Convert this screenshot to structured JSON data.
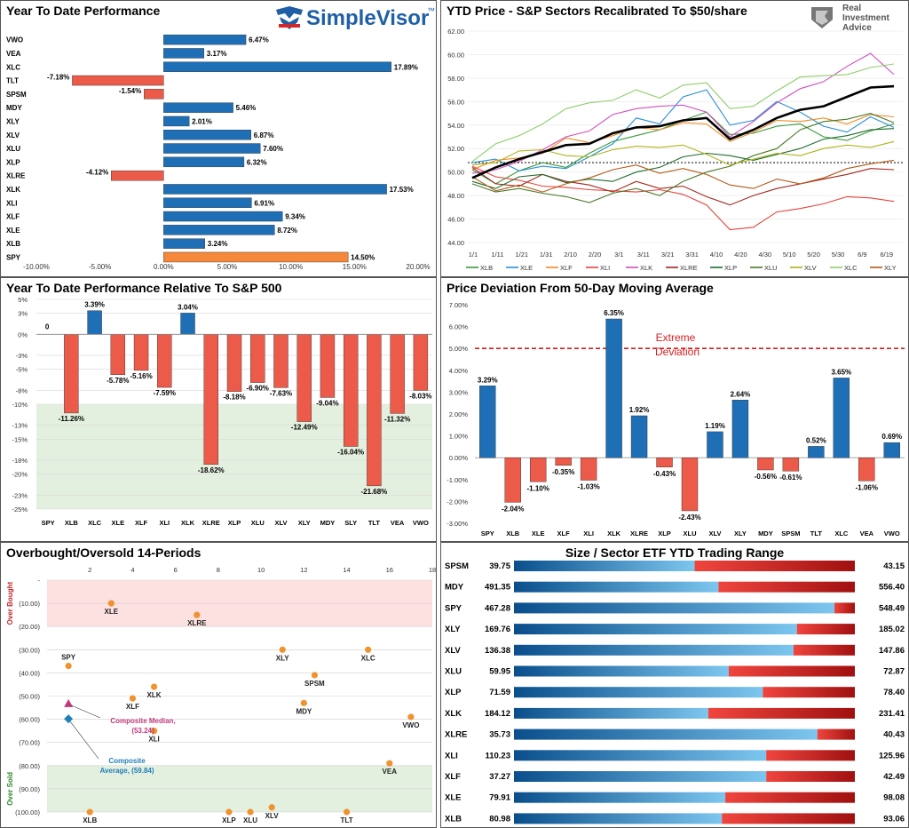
{
  "chart_data": [
    {
      "id": "ytd",
      "type": "bar",
      "orientation": "horizontal",
      "title": "Year To Date Performance",
      "brand": "SimpleVisor",
      "brand_tm": "™",
      "categories": [
        "VWO",
        "VEA",
        "XLC",
        "TLT",
        "SPSM",
        "MDY",
        "XLY",
        "XLV",
        "XLU",
        "XLP",
        "XLRE",
        "XLK",
        "XLI",
        "XLF",
        "XLE",
        "XLB",
        "SPY"
      ],
      "values": [
        6.47,
        3.17,
        17.89,
        -7.18,
        -1.54,
        5.46,
        2.01,
        6.87,
        7.6,
        6.32,
        -4.12,
        17.53,
        6.91,
        9.34,
        8.72,
        3.24,
        14.5
      ],
      "labels": [
        "6.47%",
        "3.17%",
        "17.89%",
        "-7.18%",
        "-1.54%",
        "5.46%",
        "2.01%",
        "6.87%",
        "7.60%",
        "6.32%",
        "-4.12%",
        "17.53%",
        "6.91%",
        "9.34%",
        "8.72%",
        "3.24%",
        "14.50%"
      ],
      "xlim": [
        -10,
        20
      ],
      "xticks": [
        "-10.00%",
        "-5.00%",
        "0.00%",
        "5.00%",
        "10.00%",
        "15.00%",
        "20.00%"
      ],
      "colors": {
        "positive": "#1f6fb6",
        "negative": "#ec5a4a",
        "highlight": "#f5883a"
      },
      "highlight": "SPY"
    },
    {
      "id": "price",
      "type": "line",
      "title": "YTD Price - S&P Sectors Recalibrated To $50/share",
      "brand_line1": "Real",
      "brand_line2": "Investment",
      "brand_line3": "Advice",
      "ylim": [
        44,
        62
      ],
      "yticks": [
        "44.00",
        "46.00",
        "48.00",
        "50.00",
        "52.00",
        "54.00",
        "56.00",
        "58.00",
        "60.00",
        "62.00"
      ],
      "xticks": [
        "1/1",
        "1/11",
        "1/21",
        "1/31",
        "2/10",
        "2/20",
        "3/1",
        "3/11",
        "3/21",
        "3/31",
        "4/10",
        "4/20",
        "4/30",
        "5/10",
        "5/20",
        "5/30",
        "6/9",
        "6/19"
      ],
      "reference_line": 50.8,
      "series": [
        {
          "name": "XLB",
          "color": "#3c9a3c",
          "values": [
            50.2,
            49.0,
            50.1,
            50.8,
            50.4,
            51.6,
            52.6,
            53.1,
            53.6,
            54.4,
            55.1,
            53.2,
            53.3,
            53.9,
            54.1,
            53.0,
            52.7,
            53.5,
            54.1
          ]
        },
        {
          "name": "XLE",
          "color": "#2a8fd4",
          "values": [
            50.8,
            51.1,
            50.1,
            50.5,
            50.3,
            51.3,
            52.4,
            54.6,
            54.1,
            56.4,
            57.0,
            54.0,
            54.4,
            56.0,
            55.1,
            53.9,
            53.4,
            54.7,
            53.8
          ]
        },
        {
          "name": "XLF",
          "color": "#f08a24",
          "values": [
            50.2,
            51.0,
            51.2,
            51.6,
            52.9,
            52.5,
            53.1,
            53.8,
            53.6,
            54.2,
            54.1,
            52.6,
            53.4,
            54.4,
            54.3,
            54.6,
            54.1,
            54.9,
            54.7
          ]
        },
        {
          "name": "XLI",
          "color": "#e8413a",
          "values": [
            50.5,
            49.6,
            49.3,
            48.8,
            48.7,
            48.5,
            48.4,
            48.3,
            48.5,
            48.1,
            47.2,
            45.1,
            45.3,
            46.6,
            46.9,
            47.3,
            47.9,
            47.8,
            47.5
          ]
        },
        {
          "name": "XLK",
          "color": "#d14fbf",
          "values": [
            49.9,
            50.2,
            50.9,
            51.9,
            53.0,
            53.5,
            54.9,
            55.4,
            55.6,
            55.7,
            55.1,
            53.0,
            54.3,
            55.9,
            57.1,
            57.7,
            59.0,
            60.1,
            58.3
          ]
        },
        {
          "name": "XLRE",
          "color": "#a3261c",
          "values": [
            50.4,
            49.0,
            48.8,
            49.8,
            49.2,
            48.9,
            48.3,
            49.2,
            48.6,
            48.8,
            47.9,
            47.2,
            48.0,
            48.6,
            49.0,
            49.4,
            49.8,
            50.3,
            50.2
          ]
        },
        {
          "name": "XLP",
          "color": "#1e6b2c",
          "values": [
            49.2,
            48.6,
            49.6,
            49.8,
            49.1,
            49.4,
            49.2,
            50.0,
            50.4,
            51.3,
            51.6,
            51.4,
            51.0,
            51.5,
            52.0,
            52.8,
            53.1,
            53.6,
            53.7
          ]
        },
        {
          "name": "XLU",
          "color": "#4a7a2a",
          "values": [
            49.0,
            48.3,
            48.6,
            48.2,
            47.9,
            47.4,
            48.2,
            48.6,
            48.0,
            49.2,
            50.0,
            50.5,
            51.4,
            52.0,
            53.6,
            54.3,
            54.5,
            55.0,
            54.2
          ]
        },
        {
          "name": "XLV",
          "color": "#b0b21a",
          "values": [
            50.6,
            50.8,
            51.8,
            51.9,
            51.4,
            51.3,
            51.9,
            52.2,
            52.1,
            52.3,
            51.5,
            50.6,
            51.1,
            51.6,
            51.4,
            52.0,
            52.3,
            52.1,
            52.6
          ]
        },
        {
          "name": "XLC",
          "color": "#8fcf6a",
          "values": [
            50.9,
            52.4,
            53.1,
            54.1,
            55.4,
            55.9,
            56.1,
            57.0,
            56.3,
            57.4,
            57.6,
            55.4,
            55.6,
            56.9,
            58.1,
            58.2,
            58.3,
            58.9,
            59.2
          ]
        },
        {
          "name": "XLY",
          "color": "#b35a18",
          "values": [
            49.6,
            48.4,
            48.9,
            48.3,
            49.0,
            49.5,
            50.2,
            50.6,
            49.9,
            50.3,
            49.8,
            48.9,
            48.6,
            49.4,
            49.0,
            49.5,
            50.3,
            50.7,
            51.0
          ]
        },
        {
          "name": "SPY",
          "color": "#000000",
          "values": [
            49.5,
            50.4,
            51.1,
            51.7,
            52.3,
            52.4,
            53.3,
            53.8,
            53.9,
            54.4,
            54.6,
            52.8,
            53.6,
            54.6,
            55.3,
            55.6,
            56.4,
            57.2,
            57.3
          ]
        }
      ]
    },
    {
      "id": "relative",
      "type": "bar",
      "title": "Year To Date Performance Relative To S&P 500",
      "categories": [
        "SPY",
        "XLB",
        "XLC",
        "XLE",
        "XLF",
        "XLI",
        "XLK",
        "XLRE",
        "XLP",
        "XLU",
        "XLV",
        "XLY",
        "MDY",
        "SLY",
        "TLT",
        "VEA",
        "VWO"
      ],
      "values": [
        0,
        -11.26,
        3.39,
        -5.78,
        -5.16,
        -7.59,
        3.04,
        -18.62,
        -8.18,
        -6.9,
        -7.63,
        -12.49,
        -9.04,
        -16.04,
        -21.68,
        -11.32,
        -8.03
      ],
      "labels": [
        "0",
        "-11.26%",
        "3.39%",
        "-5.78%",
        "-5.16%",
        "-7.59%",
        "3.04%",
        "-18.62%",
        "-8.18%",
        "-6.90%",
        "-7.63%",
        "-12.49%",
        "-9.04%",
        "-16.04%",
        "-21.68%",
        "-11.32%",
        "-8.03%"
      ],
      "ylim": [
        -25,
        5
      ],
      "yticks": [
        {
          "v": 5,
          "t": "5%"
        },
        {
          "v": 3,
          "t": "3%"
        },
        {
          "v": 0,
          "t": "0%"
        },
        {
          "v": -3,
          "t": "-3%"
        },
        {
          "v": -5,
          "t": "-5%"
        },
        {
          "v": -8,
          "t": "-8%"
        },
        {
          "v": -10,
          "t": "-10%"
        },
        {
          "v": -13,
          "t": "-13%"
        },
        {
          "v": -15,
          "t": "-15%"
        },
        {
          "v": -18,
          "t": "-18%"
        },
        {
          "v": -20,
          "t": "-20%"
        },
        {
          "v": -23,
          "t": "-23%"
        },
        {
          "v": -25,
          "t": "-25%"
        }
      ],
      "shade_below": -10,
      "colors": {
        "positive": "#1f6fb6",
        "negative": "#ec5a4a",
        "shade": "#e4f0df"
      }
    },
    {
      "id": "deviation",
      "type": "bar",
      "title": "Price Deviation From 50-Day Moving Average",
      "categories": [
        "SPY",
        "XLB",
        "XLE",
        "XLF",
        "XLI",
        "XLK",
        "XLRE",
        "XLP",
        "XLU",
        "XLV",
        "XLY",
        "MDY",
        "SPSM",
        "TLT",
        "XLC",
        "VEA",
        "VWO"
      ],
      "values": [
        3.29,
        -2.04,
        -1.1,
        -0.35,
        -1.03,
        6.35,
        1.92,
        -0.43,
        -2.43,
        1.19,
        2.64,
        -0.56,
        -0.61,
        0.52,
        3.65,
        -1.06,
        0.69
      ],
      "labels": [
        "3.29%",
        "-2.04%",
        "-1.10%",
        "-0.35%",
        "-1.03%",
        "6.35%",
        "1.92%",
        "-0.43%",
        "-2.43%",
        "1.19%",
        "2.64%",
        "-0.56%",
        "-0.61%",
        "0.52%",
        "3.65%",
        "-1.06%",
        "0.69%"
      ],
      "ylim": [
        -3,
        7
      ],
      "yticks": [
        "-3.00%",
        "-2.00%",
        "-1.00%",
        "0.00%",
        "1.00%",
        "2.00%",
        "3.00%",
        "4.00%",
        "5.00%",
        "6.00%",
        "7.00%"
      ],
      "threshold": 5,
      "threshold_label_1": "Extreme",
      "threshold_label_2": "Deviation",
      "colors": {
        "positive": "#1f6fb6",
        "negative": "#ec5a4a",
        "threshold": "#d42020"
      }
    },
    {
      "id": "oversold",
      "type": "scatter",
      "title": "Overbought/Oversold 14-Periods",
      "xlim": [
        0,
        18
      ],
      "xticks": [
        2,
        4,
        6,
        8,
        10,
        12,
        14,
        16,
        18
      ],
      "ylim": [
        -100,
        0
      ],
      "yticks": [
        {
          "v": 0,
          "t": "-"
        },
        {
          "v": -10,
          "t": "(10.00)"
        },
        {
          "v": -20,
          "t": "(20.00)"
        },
        {
          "v": -30,
          "t": "(30.00)"
        },
        {
          "v": -40,
          "t": "(40.00)"
        },
        {
          "v": -50,
          "t": "(50.00)"
        },
        {
          "v": -60,
          "t": "(60.00)"
        },
        {
          "v": -70,
          "t": "(70.00)"
        },
        {
          "v": -80,
          "t": "(80.00)"
        },
        {
          "v": -90,
          "t": "(90.00)"
        },
        {
          "v": -100,
          "t": "(100.00)"
        }
      ],
      "overbought_label": "Over Bought",
      "oversold_label": "Over Sold",
      "overbought_above": -20,
      "oversold_below": -80,
      "points": [
        {
          "name": "XLE",
          "x": 3,
          "y": -10,
          "lx": 0,
          "ly": 1
        },
        {
          "name": "XLRE",
          "x": 7,
          "y": -15,
          "lx": 0,
          "ly": 1
        },
        {
          "name": "SPY",
          "x": 1,
          "y": -37,
          "lx": 0,
          "ly": -1
        },
        {
          "name": "XLY",
          "x": 11,
          "y": -30,
          "lx": 0,
          "ly": 1
        },
        {
          "name": "XLC",
          "x": 15,
          "y": -30,
          "lx": 0,
          "ly": 1
        },
        {
          "name": "SPSM",
          "x": 12.5,
          "y": -41,
          "lx": 0,
          "ly": 1
        },
        {
          "name": "XLK",
          "x": 5,
          "y": -46,
          "lx": 0,
          "ly": 1
        },
        {
          "name": "XLF",
          "x": 4,
          "y": -51,
          "lx": 0,
          "ly": 1
        },
        {
          "name": "MDY",
          "x": 12,
          "y": -53,
          "lx": 0,
          "ly": 1
        },
        {
          "name": "XLI",
          "x": 5,
          "y": -65,
          "lx": 0,
          "ly": 1
        },
        {
          "name": "VWO",
          "x": 17,
          "y": -59,
          "lx": 0,
          "ly": 1
        },
        {
          "name": "VEA",
          "x": 16,
          "y": -79,
          "lx": 0,
          "ly": 1
        },
        {
          "name": "XLB",
          "x": 2,
          "y": -100,
          "lx": 0,
          "ly": 1
        },
        {
          "name": "XLP",
          "x": 8.5,
          "y": -100,
          "lx": 0,
          "ly": 1
        },
        {
          "name": "XLU",
          "x": 9.5,
          "y": -100,
          "lx": 0,
          "ly": 1
        },
        {
          "name": "XLV",
          "x": 10.5,
          "y": -98,
          "lx": 0,
          "ly": 1
        },
        {
          "name": "TLT",
          "x": 14,
          "y": -100,
          "lx": 0,
          "ly": 1
        }
      ],
      "median": {
        "x": 1,
        "y": -53.2,
        "label_1": "Composite Median,",
        "label_2": "(53.24)"
      },
      "average": {
        "x": 1,
        "y": -59.84,
        "label_1": "Composite",
        "label_2": "Average,  (59.84)"
      },
      "colors": {
        "point": "#f0922e",
        "overbought": "#fde1e1",
        "oversold": "#e4f0df",
        "median": "#c0397a",
        "average": "#1f7fb8"
      }
    },
    {
      "id": "range",
      "type": "bar",
      "orientation": "horizontal-range",
      "title": "Size / Sector ETF YTD Trading Range",
      "rows": [
        {
          "name": "SPSM",
          "low": "39.75",
          "high": "43.15",
          "fraction": 0.53
        },
        {
          "name": "MDY",
          "low": "491.35",
          "high": "556.40",
          "fraction": 0.6
        },
        {
          "name": "SPY",
          "low": "467.28",
          "high": "548.49",
          "fraction": 0.94
        },
        {
          "name": "XLY",
          "low": "169.76",
          "high": "185.02",
          "fraction": 0.83
        },
        {
          "name": "XLV",
          "low": "136.38",
          "high": "147.86",
          "fraction": 0.82
        },
        {
          "name": "XLU",
          "low": "59.95",
          "high": "72.87",
          "fraction": 0.63
        },
        {
          "name": "XLP",
          "low": "71.59",
          "high": "78.40",
          "fraction": 0.73
        },
        {
          "name": "XLK",
          "low": "184.12",
          "high": "231.41",
          "fraction": 0.57
        },
        {
          "name": "XLRE",
          "low": "35.73",
          "high": "40.43",
          "fraction": 0.89
        },
        {
          "name": "XLI",
          "low": "110.23",
          "high": "125.96",
          "fraction": 0.74
        },
        {
          "name": "XLF",
          "low": "37.27",
          "high": "42.49",
          "fraction": 0.74
        },
        {
          "name": "XLE",
          "low": "79.91",
          "high": "98.08",
          "fraction": 0.62
        },
        {
          "name": "XLB",
          "low": "80.98",
          "high": "93.06",
          "fraction": 0.61
        }
      ],
      "colors": {
        "blue_dark": "#0a4f8c",
        "blue_light": "#7cc6ef",
        "red_light": "#f0453e",
        "red_dark": "#a01010"
      }
    }
  ]
}
